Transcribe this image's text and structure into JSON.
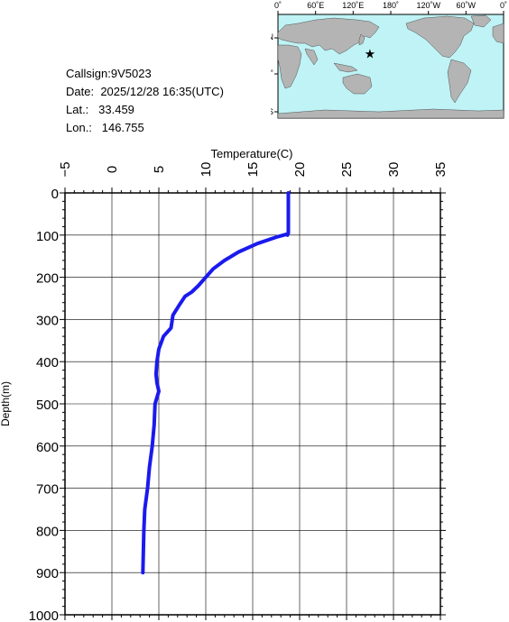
{
  "station": {
    "callsign_label": "Callsign:",
    "callsign": "9V5023",
    "date_label": "Date:",
    "date": "2025/12/28 16:35(UTC)",
    "lat_label": "Lat.:",
    "lat": "33.459",
    "lon_label": "Lon.:",
    "lon": "146.755"
  },
  "map": {
    "top_labels": [
      "0˚",
      "60˚E",
      "120˚E",
      "180˚",
      "120˚W",
      "60˚W",
      "0˚"
    ],
    "left_labels": [
      "60˚N",
      "0˚",
      "60˚S"
    ],
    "colors": {
      "ocean": "#bff3f6",
      "land": "#b4b4b4",
      "marker": "#ff0000"
    },
    "marker_lon": 146.755,
    "marker_lat": 33.459
  },
  "chart_data": {
    "type": "line",
    "xlabel": "Temperature(C)",
    "ylabel": "Depth(m)",
    "xlim": [
      -5,
      35
    ],
    "ylim": [
      1000,
      0
    ],
    "xticks": [
      -5,
      0,
      5,
      10,
      15,
      20,
      25,
      30,
      35
    ],
    "yticks": [
      0,
      100,
      200,
      300,
      400,
      500,
      600,
      700,
      800,
      900,
      1000
    ],
    "grid": true,
    "line_color": "#1a1aee",
    "x": [
      18.8,
      18.8,
      18.8,
      18.7,
      18.6,
      17.5,
      15.5,
      13.5,
      12.0,
      10.8,
      10.0,
      9.2,
      8.5,
      7.8,
      7.2,
      6.5,
      6.3,
      5.5,
      5.0,
      4.8,
      4.7,
      4.8,
      5.0,
      4.6,
      4.5,
      4.3,
      4.0,
      3.8,
      3.5,
      3.4,
      3.3
    ],
    "y": [
      0,
      50,
      95,
      100,
      98,
      105,
      120,
      140,
      160,
      180,
      200,
      220,
      235,
      245,
      265,
      290,
      320,
      340,
      370,
      400,
      430,
      450,
      470,
      500,
      550,
      600,
      650,
      700,
      750,
      800,
      900
    ]
  }
}
